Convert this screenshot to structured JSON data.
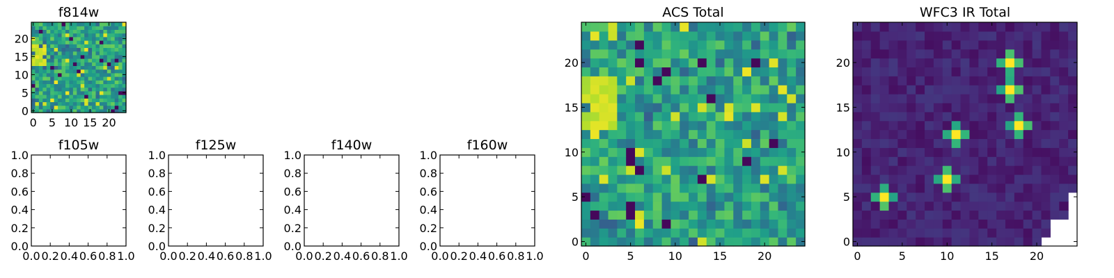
{
  "chart_data": [
    {
      "type": "heatmap",
      "title": "f814w",
      "pixels": 25,
      "colormap": "viridis",
      "xticks": [
        "0",
        "5",
        "10",
        "15",
        "20"
      ],
      "yticks": [
        "0",
        "5",
        "10",
        "15",
        "20"
      ],
      "xlim": [
        -0.5,
        24.5
      ],
      "ylim": [
        -0.5,
        24.5
      ]
    },
    {
      "type": "table",
      "title": "f105w",
      "xlim": [
        0,
        1
      ],
      "ylim": [
        0,
        1
      ],
      "xticks": [
        "0.0",
        "0.2",
        "0.4",
        "0.6",
        "0.8",
        "1.0"
      ],
      "yticks": [
        "0.0",
        "0.2",
        "0.4",
        "0.6",
        "0.8",
        "1.0"
      ]
    },
    {
      "type": "table",
      "title": "f125w",
      "xlim": [
        0,
        1
      ],
      "ylim": [
        0,
        1
      ],
      "xticks": [
        "0.0",
        "0.2",
        "0.4",
        "0.6",
        "0.8",
        "1.0"
      ],
      "yticks": [
        "0.0",
        "0.2",
        "0.4",
        "0.6",
        "0.8",
        "1.0"
      ]
    },
    {
      "type": "table",
      "title": "f140w",
      "xlim": [
        0,
        1
      ],
      "ylim": [
        0,
        1
      ],
      "xticks": [
        "0.0",
        "0.2",
        "0.4",
        "0.6",
        "0.8",
        "1.0"
      ],
      "yticks": [
        "0.0",
        "0.2",
        "0.4",
        "0.6",
        "0.8",
        "1.0"
      ]
    },
    {
      "type": "table",
      "title": "f160w",
      "xlim": [
        0,
        1
      ],
      "ylim": [
        0,
        1
      ],
      "xticks": [
        "0.0",
        "0.2",
        "0.4",
        "0.6",
        "0.8",
        "1.0"
      ],
      "yticks": [
        "0.0",
        "0.2",
        "0.4",
        "0.6",
        "0.8",
        "1.0"
      ]
    },
    {
      "type": "heatmap",
      "title": "ACS Total",
      "pixels": 25,
      "colormap": "viridis",
      "xticks": [
        "0",
        "5",
        "10",
        "15",
        "20"
      ],
      "yticks": [
        "0",
        "5",
        "10",
        "15",
        "20"
      ],
      "xlim": [
        -0.5,
        24.5
      ],
      "ylim": [
        -0.5,
        24.5
      ]
    },
    {
      "type": "heatmap",
      "title": "WFC3 IR Total",
      "pixels": 25,
      "colormap": "viridis",
      "xticks": [
        "0",
        "5",
        "10",
        "15",
        "20"
      ],
      "yticks": [
        "0",
        "5",
        "10",
        "15",
        "20"
      ],
      "xlim": [
        -0.5,
        24.5
      ],
      "ylim": [
        -0.5,
        24.5
      ],
      "bright_sources": [
        {
          "x": 17,
          "y": 20
        },
        {
          "x": 17,
          "y": 17
        },
        {
          "x": 18,
          "y": 13
        },
        {
          "x": 11,
          "y": 12
        },
        {
          "x": 10,
          "y": 7
        },
        {
          "x": 3,
          "y": 5
        }
      ],
      "masked_region": "bottom-right corner (blank)"
    }
  ]
}
